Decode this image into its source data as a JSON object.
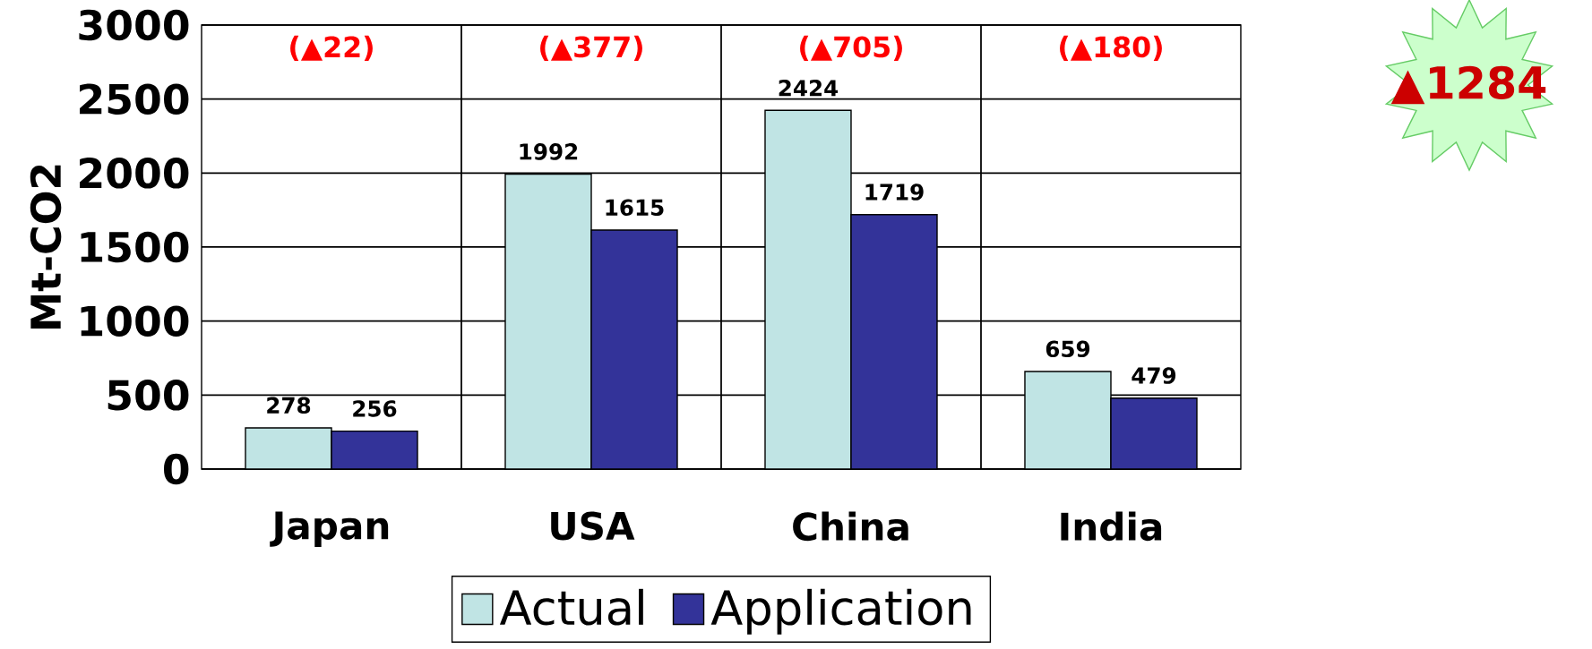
{
  "chart_data": {
    "type": "bar",
    "ylabel": "Mt-CO2",
    "categories": [
      "Japan",
      "USA",
      "China",
      "India"
    ],
    "series": [
      {
        "name": "Actual",
        "color": "#c0e4e4",
        "values": [
          278,
          1992,
          2424,
          659
        ]
      },
      {
        "name": "Application",
        "color": "#333399",
        "values": [
          256,
          1615,
          1719,
          479
        ]
      }
    ],
    "ylim": [
      0,
      3000
    ],
    "yticks": [
      0,
      500,
      1000,
      1500,
      2000,
      2500,
      3000
    ],
    "grid": true,
    "legend": "bottom",
    "data_labels": true,
    "annotations": [
      "(▲22)",
      "(▲377)",
      "(▲705)",
      "(▲180)",
      "▲1284"
    ]
  }
}
